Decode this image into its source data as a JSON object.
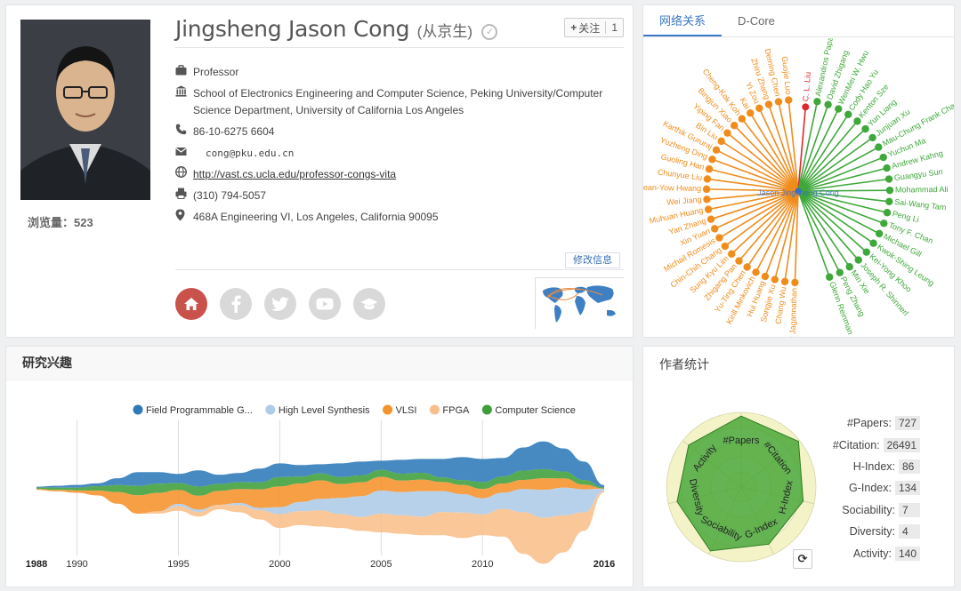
{
  "profile": {
    "name": "Jingsheng Jason Cong",
    "name_cn": "(从京生)",
    "follow_label": "关注",
    "follow_count": "1",
    "views_label": "浏览量：",
    "views": "523",
    "title": "Professor",
    "affiliation": "School of Electronics Engineering and Computer Science, Peking University/Computer Science Department, University of California Los Angeles",
    "phone": "86-10-6275 6604",
    "email": "cong@pku.edu.cn",
    "homepage": "http://vast.cs.ucla.edu/professor-congs-vita",
    "fax": "(310) 794-5057",
    "address": "468A Engineering VI, Los Angeles, California 90095",
    "edit_label": "修改信息"
  },
  "icons": {
    "title": "briefcase-icon",
    "affiliation": "institution-icon",
    "phone": "phone-icon",
    "email": "envelope-icon",
    "homepage": "globe-icon",
    "fax": "fax-icon",
    "address": "map-marker-icon"
  },
  "network": {
    "tabs": [
      "网络关系",
      "D-Core"
    ],
    "center": "Jason Jingsheng Cong",
    "orange_nodes": [
      "Guojie Luo",
      "Deming Chen",
      "Zhiru Zhang",
      "Yi Zou",
      "Kai",
      "Cheng-Kok Koh",
      "Bingjun Xiao",
      "Yiping Fan",
      "Bin Liu",
      "Karthik Gururaj",
      "Yuzheng Ding",
      "Guoling Han",
      "Chunyue Liu",
      "Sean-Yow Hwang",
      "Wei Jiang",
      "Muhuan Huang",
      "Yan Zhang",
      "Xin Yuan",
      "Michail Romesis",
      "Chin-Chih Chang",
      "Sung Kyu Lim",
      "Zhigang Pan",
      "Yu-Ting Chen",
      "Kirill Minkovich",
      "Hui Huang",
      "Songjie Xu",
      "Chang Wu",
      "Ashok Jagannathan"
    ],
    "red_nodes": [
      "C. L. Liu"
    ],
    "green_nodes": [
      "Alexandros Papakonstantinou",
      "David Zhigang",
      "WenMei W. Hwu",
      "Cody Hao Yu",
      "Kenton Sze",
      "Yun Liang",
      "Junjuan Xu",
      "Mau-Chung Frank Chang",
      "Yuchun Ma",
      "Andrew Kahng",
      "Guangyu Sun",
      "Mohammad Ali",
      "Sai-Wang Tam",
      "Peng Li",
      "Tony F. Chan",
      "Michael Gill",
      "Kwok-Shing Leung",
      "Kei-Yong Khoo",
      "Joseph R. Shinnerl",
      "Min Xie",
      "Peng Zhang",
      "Glenn Reinman"
    ]
  },
  "interest": {
    "title": "研究兴趣",
    "start_year": "1988",
    "end_year": "2016"
  },
  "chart_data": {
    "type": "area",
    "x": [
      1988,
      1989,
      1990,
      1991,
      1992,
      1993,
      1994,
      1995,
      1996,
      1997,
      1998,
      1999,
      2000,
      2001,
      2002,
      2003,
      2004,
      2005,
      2006,
      2007,
      2008,
      2009,
      2010,
      2011,
      2012,
      2013,
      2014,
      2015,
      2016
    ],
    "xticks": [
      "1990",
      "1995",
      "2000",
      "2005",
      "2010"
    ],
    "legend_position": "top",
    "series": [
      {
        "name": "Field Programmable G...",
        "color": "#2e7ab8",
        "values": [
          0.2,
          0.4,
          0.6,
          0.6,
          1.5,
          3,
          2.5,
          2,
          3.5,
          2,
          2,
          3,
          3,
          2.5,
          2,
          3,
          3,
          2,
          3,
          3,
          4,
          5,
          5,
          4,
          5,
          6,
          5,
          4,
          0.5
        ]
      },
      {
        "name": "High Level Synthesis",
        "color": "#aecbe8",
        "values": [
          0,
          0,
          0,
          0,
          0,
          0,
          0,
          0.5,
          0.5,
          0,
          0.5,
          0.5,
          1.5,
          2,
          2.5,
          3.5,
          4.5,
          5,
          5,
          5.5,
          4.5,
          4,
          3.5,
          3.5,
          5,
          6,
          6,
          5,
          0.5
        ]
      },
      {
        "name": "VLSI",
        "color": "#f5922b",
        "values": [
          0.2,
          0.3,
          0.5,
          1,
          2.5,
          4,
          4,
          3,
          3,
          3,
          3,
          4,
          4.5,
          4,
          4,
          3,
          3,
          3,
          2.5,
          2.5,
          2,
          2,
          2,
          2,
          2,
          2.5,
          2,
          1,
          0.1
        ]
      },
      {
        "name": "FPGA",
        "color": "#f8bf8a",
        "values": [
          0,
          0,
          0,
          0,
          0,
          0,
          0.5,
          1,
          1,
          1,
          1.5,
          2,
          3,
          3,
          3.5,
          3,
          3,
          4,
          4,
          4,
          5,
          5.5,
          4.5,
          6,
          9,
          10,
          8,
          4,
          0.3
        ]
      },
      {
        "name": "Computer Science",
        "color": "#3e9e3a",
        "values": [
          0.3,
          0.5,
          0.6,
          1,
          1.5,
          2,
          2,
          1.5,
          2,
          1.5,
          1.5,
          1.5,
          2,
          1.5,
          1.5,
          1.5,
          1.5,
          1.5,
          1.5,
          1.5,
          1,
          1,
          1.5,
          1.5,
          2,
          2,
          1.5,
          1,
          0.2
        ]
      }
    ]
  },
  "stats": {
    "title": "作者统计",
    "radar_axes": [
      "#Papers",
      "#Citation",
      "H-Index",
      "G-Index",
      "Sociability",
      "Diversity",
      "Activity"
    ],
    "radar_values": [
      0.95,
      0.98,
      0.85,
      0.85,
      0.95,
      0.88,
      0.9
    ],
    "items": [
      {
        "label": "#Papers:",
        "value": "727"
      },
      {
        "label": "#Citation:",
        "value": "26491"
      },
      {
        "label": "H-Index:",
        "value": "86"
      },
      {
        "label": "G-Index:",
        "value": "134"
      },
      {
        "label": "Sociability:",
        "value": "7"
      },
      {
        "label": "Diversity:",
        "value": "4"
      },
      {
        "label": "Activity:",
        "value": "140"
      }
    ]
  }
}
